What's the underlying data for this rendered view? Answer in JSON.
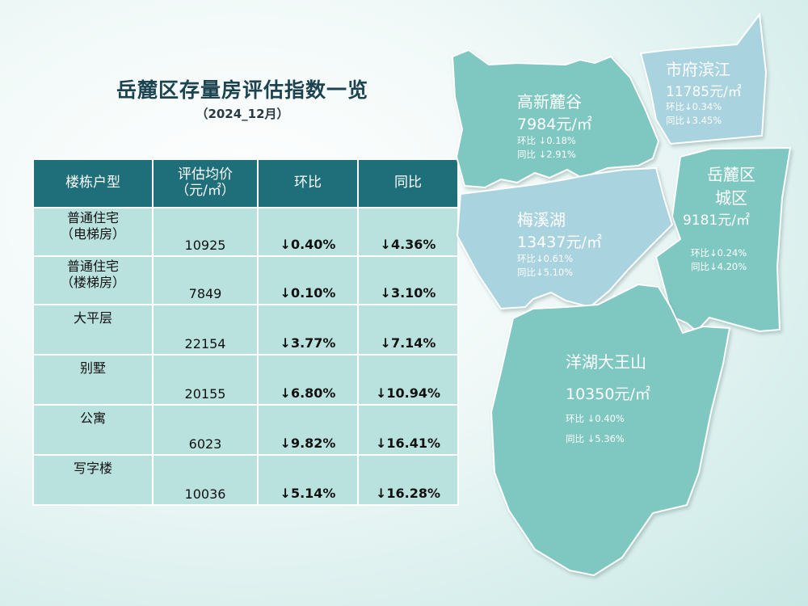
{
  "header": {
    "title": "岳麓区存量房评估指数一览",
    "subtitle": "（2024_12月）"
  },
  "table": {
    "columns": [
      "楼栋户型",
      "评估均价（元/㎡）",
      "环比",
      "同比"
    ],
    "rows": [
      {
        "type_line1": "普通住宅",
        "type_line2": "（电梯房）",
        "price": "10925",
        "mom": "↓0.40%",
        "yoy": "↓4.36%"
      },
      {
        "type_line1": "普通住宅",
        "type_line2": "（楼梯房）",
        "price": "7849",
        "mom": "↓0.10%",
        "yoy": "↓3.10%"
      },
      {
        "type_line1": "大平层",
        "type_line2": "",
        "price": "22154",
        "mom": "↓3.77%",
        "yoy": "↓7.14%"
      },
      {
        "type_line1": "别墅",
        "type_line2": "",
        "price": "20155",
        "mom": "↓6.80%",
        "yoy": "↓10.94%"
      },
      {
        "type_line1": "公寓",
        "type_line2": "",
        "price": "6023",
        "mom": "↓9.82%",
        "yoy": "↓16.41%"
      },
      {
        "type_line1": "写字楼",
        "type_line2": "",
        "price": "10036",
        "mom": "↓5.14%",
        "yoy": "↓16.28%"
      }
    ]
  },
  "map": {
    "colors": {
      "teal": "#7fc8c2",
      "blue": "#a9d3de",
      "edge": "#ffffff"
    },
    "regions": [
      {
        "name": "高新麓谷",
        "price": "7984元/㎡",
        "mom": "环比  ↓0.18%",
        "yoy": "同比  ↓2.91%"
      },
      {
        "name": "市府滨江",
        "price": "11785元/㎡",
        "mom": "环比↓0.34%",
        "yoy": "同比↓3.45%"
      },
      {
        "name": "岳麓区",
        "name2": "城区",
        "price": "9181元/㎡",
        "mom": "环比↓0.24%",
        "yoy": "同比↓4.20%"
      },
      {
        "name": "梅溪湖",
        "price": "13437元/㎡",
        "mom": "环比↓0.61%",
        "yoy": "同比↓5.10%"
      },
      {
        "name": "洋湖大王山",
        "price": "10350元/㎡",
        "mom": "环比 ↓0.40%",
        "yoy": "同比 ↓5.36%"
      }
    ]
  }
}
